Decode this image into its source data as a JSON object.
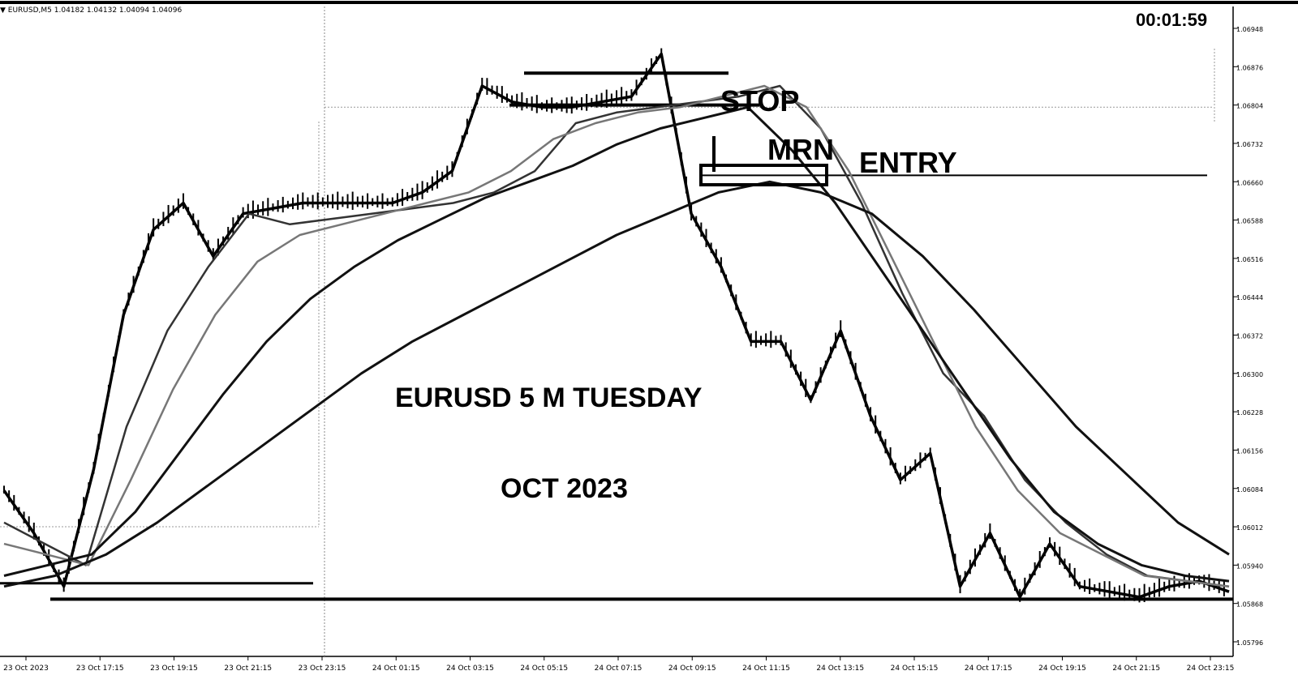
{
  "header": {
    "symbol_info": "▼ EURUSD,M5  1.04182 1.04132 1.04094 1.04096",
    "countdown": "00:01:59"
  },
  "annotations": {
    "title_line1": "EURUSD 5 M TUESDAY",
    "title_line2": "OCT 2023",
    "stop_label": "STOP",
    "mrn_label": "MRN",
    "entry_label": "ENTRY"
  },
  "chart_data": {
    "type": "line",
    "instrument": "EURUSD",
    "timeframe": "M5",
    "y_axis_ticks": [
      "1.06948",
      "1.06876",
      "1.06804",
      "1.06732",
      "1.06660",
      "1.06588",
      "1.06516",
      "1.06444",
      "1.06372",
      "1.06300",
      "1.06228",
      "1.06156",
      "1.06084",
      "1.06012",
      "1.05940",
      "1.05868",
      "1.05796"
    ],
    "ylim": [
      1.0578,
      1.0698
    ],
    "x_axis_ticks": [
      "23 Oct 2023",
      "23 Oct 17:15",
      "23 Oct 19:15",
      "23 Oct 21:15",
      "23 Oct 23:15",
      "24 Oct 01:15",
      "24 Oct 03:15",
      "24 Oct 05:15",
      "24 Oct 07:15",
      "24 Oct 09:15",
      "24 Oct 11:15",
      "24 Oct 13:15",
      "24 Oct 15:15",
      "24 Oct 17:15",
      "24 Oct 19:15",
      "24 Oct 21:15",
      "24 Oct 23:15"
    ],
    "series": [
      {
        "values": [
          1.0608,
          1.06,
          1.059,
          1.0612,
          1.0641,
          1.0657,
          1.0662,
          1.0652,
          1.066,
          1.0661,
          1.0662,
          1.0662,
          1.0662,
          1.0662,
          1.0664,
          1.0668,
          1.0684,
          1.0681,
          1.068,
          1.068,
          1.0681,
          1.0682,
          1.069,
          1.066,
          1.065,
          1.0636,
          1.0636,
          1.0625,
          1.0638,
          1.0622,
          1.061,
          1.0615,
          1.059,
          1.06,
          1.0588,
          1.0598,
          1.059,
          1.0589,
          1.0588,
          1.059,
          1.0591,
          1.0589
        ]
      },
      {
        "values": [
          1.0602,
          1.0598,
          1.0594,
          1.062,
          1.0638,
          1.065,
          1.066,
          1.0658,
          1.0659,
          1.066,
          1.0661,
          1.0662,
          1.0664,
          1.0668,
          1.0677,
          1.0679,
          1.068,
          1.0681,
          1.0682,
          1.0684,
          1.0676,
          1.0662,
          1.0645,
          1.063,
          1.0622,
          1.061,
          1.0602,
          1.0596,
          1.0592,
          1.0591,
          1.059
        ]
      },
      {
        "values": [
          1.0598,
          1.0596,
          1.0594,
          1.061,
          1.0627,
          1.0641,
          1.0651,
          1.0656,
          1.0658,
          1.066,
          1.0662,
          1.0664,
          1.0668,
          1.0674,
          1.0677,
          1.0679,
          1.068,
          1.0682,
          1.0684,
          1.068,
          1.0668,
          1.0652,
          1.0636,
          1.062,
          1.0608,
          1.06,
          1.0596,
          1.0592,
          1.0591,
          1.059
        ]
      },
      {
        "values": [
          1.0592,
          1.0594,
          1.0596,
          1.0604,
          1.0615,
          1.0626,
          1.0636,
          1.0644,
          1.065,
          1.0655,
          1.0659,
          1.0663,
          1.0666,
          1.0669,
          1.0673,
          1.0676,
          1.0678,
          1.068,
          1.0672,
          1.0662,
          1.065,
          1.0638,
          1.0626,
          1.0614,
          1.0604,
          1.0598,
          1.0594,
          1.0592,
          1.0591
        ]
      },
      {
        "values": [
          1.059,
          1.0592,
          1.0596,
          1.0602,
          1.0609,
          1.0616,
          1.0623,
          1.063,
          1.0636,
          1.0641,
          1.0646,
          1.0651,
          1.0656,
          1.066,
          1.0664,
          1.0666,
          1.0664,
          1.066,
          1.0652,
          1.0642,
          1.0631,
          1.062,
          1.0611,
          1.0602,
          1.0596
        ]
      }
    ],
    "levels": [
      {
        "value": 1.06864
      },
      {
        "value": 1.06804
      },
      {
        "value": 1.06672
      },
      {
        "value": 1.068
      },
      {
        "value": 1.05906
      },
      {
        "value": 1.05876
      }
    ],
    "grid": false
  }
}
